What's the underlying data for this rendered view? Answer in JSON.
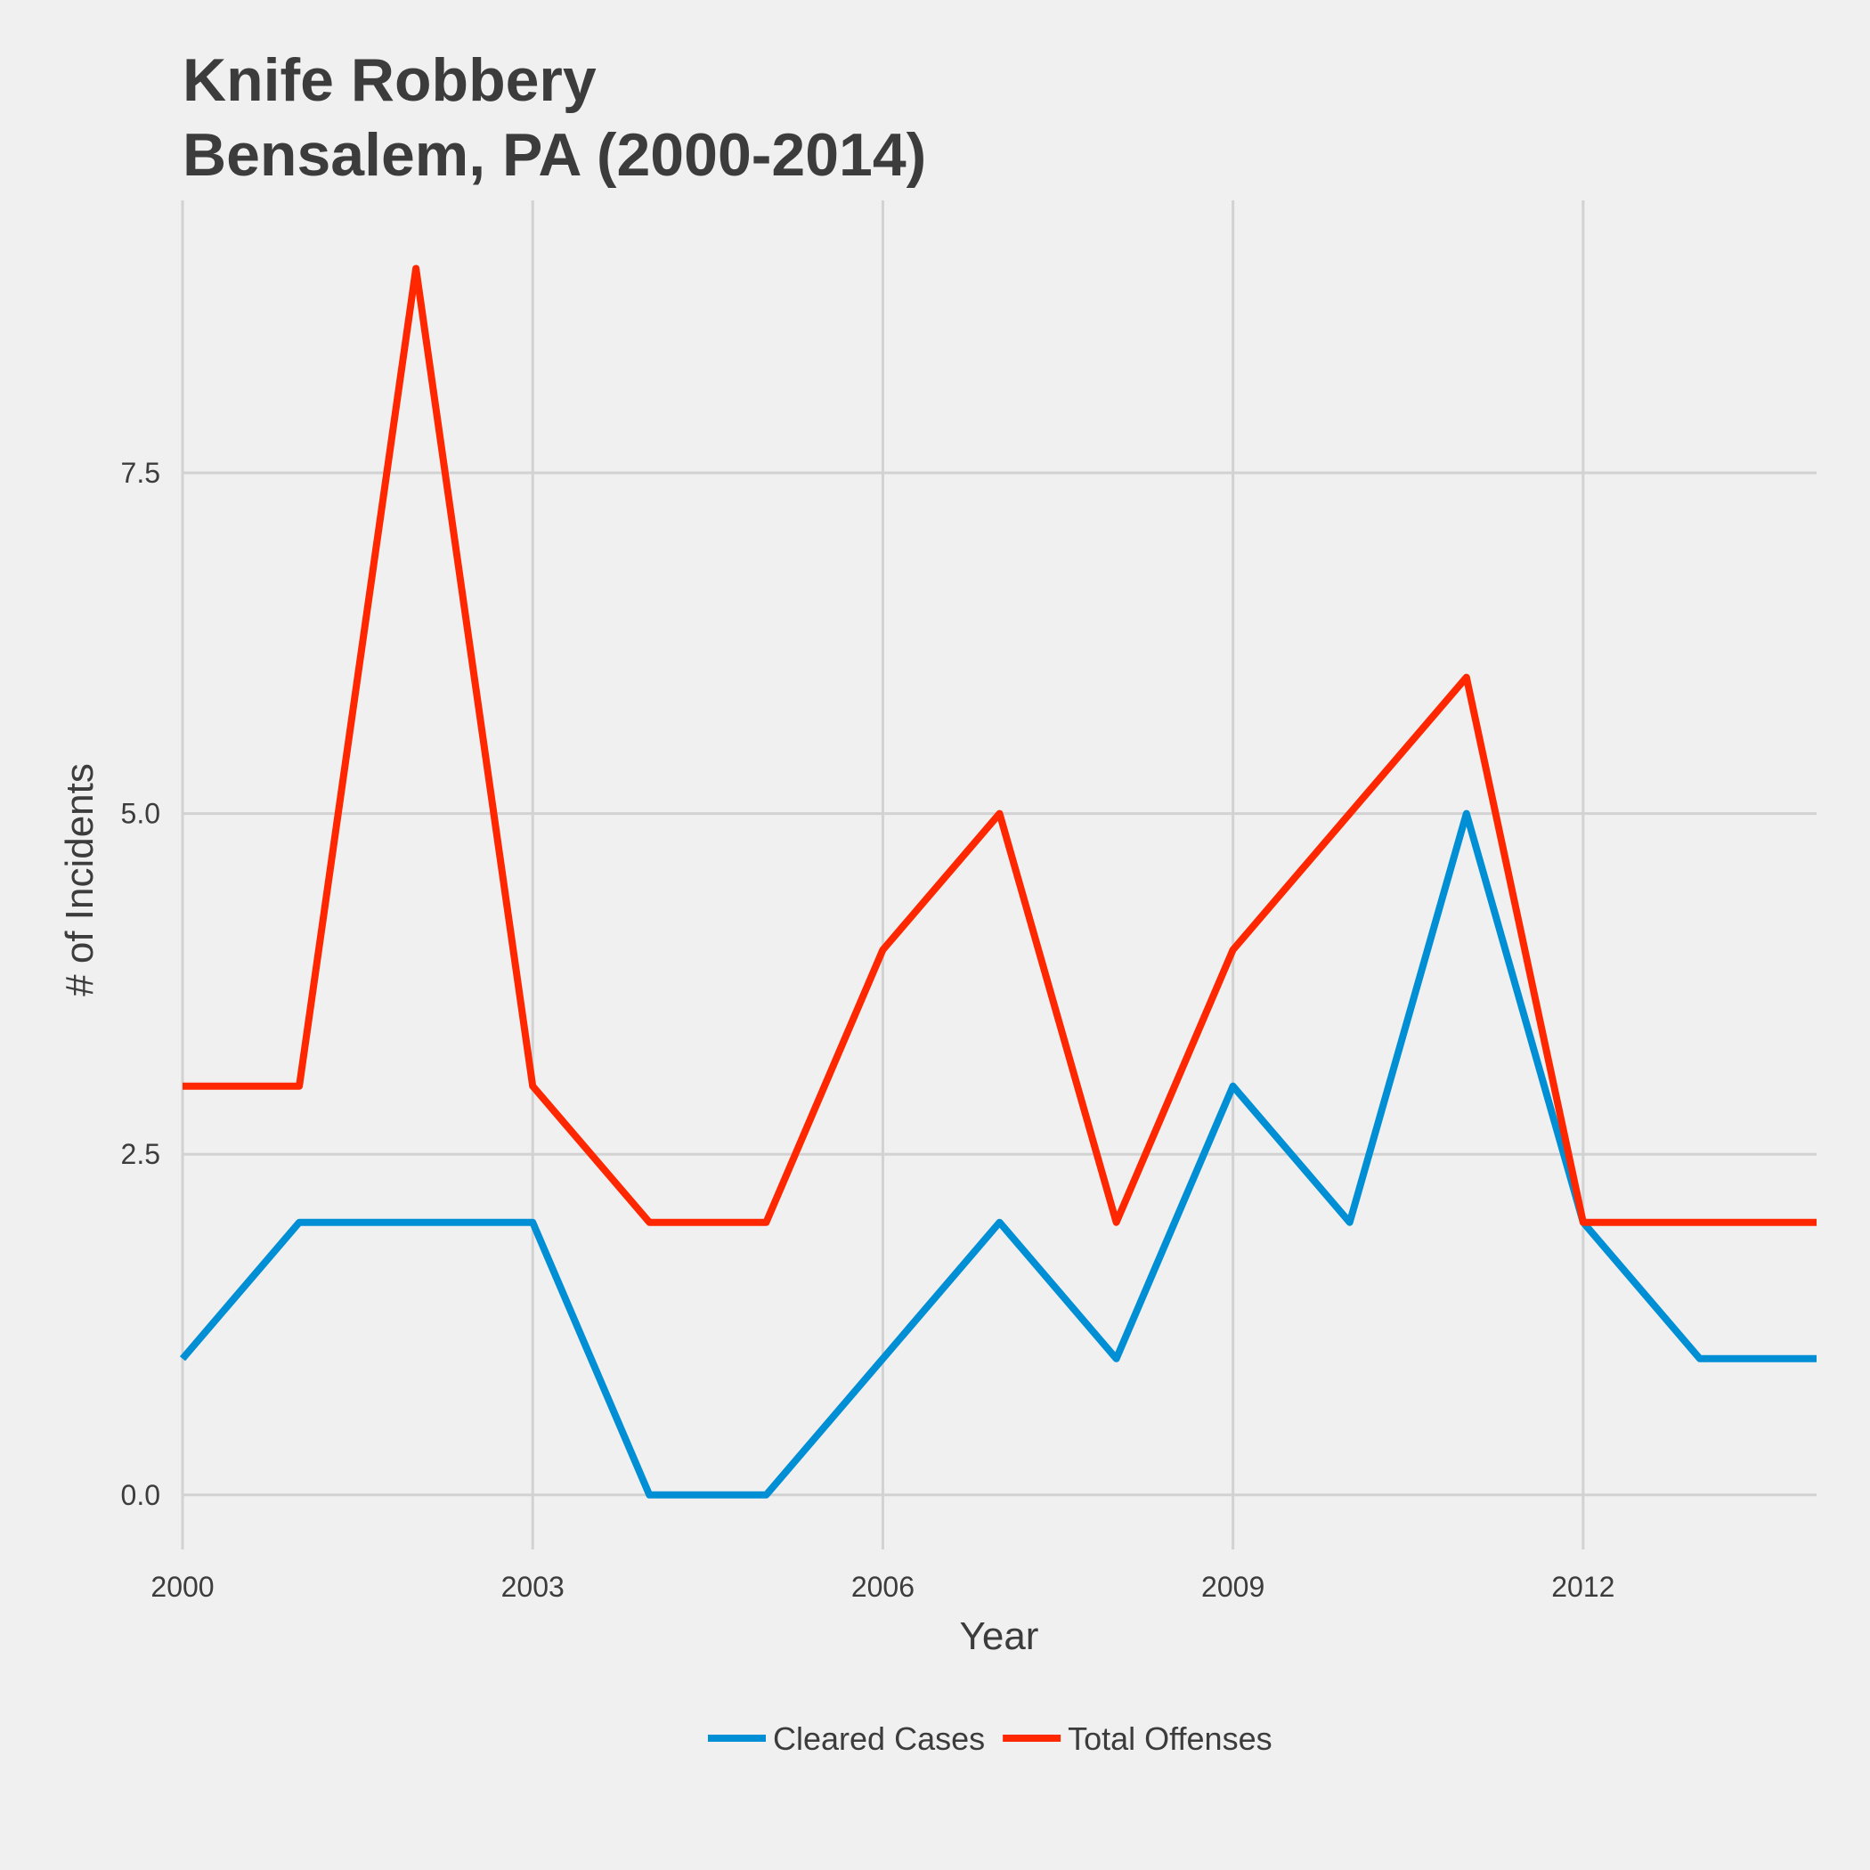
{
  "chart_data": {
    "type": "line",
    "title": [
      "Knife Robbery",
      "Bensalem, PA (2000-2014)"
    ],
    "xlabel": "Year",
    "ylabel": "# of Incidents",
    "x": [
      2000,
      2001,
      2002,
      2003,
      2004,
      2005,
      2006,
      2007,
      2008,
      2009,
      2010,
      2011,
      2012,
      2013,
      2014
    ],
    "xlim": [
      2000,
      2014
    ],
    "ylim": [
      -0.4,
      9.5
    ],
    "x_ticks": [
      2000,
      2003,
      2006,
      2009,
      2012
    ],
    "x_tick_labels": [
      "2000",
      "2003",
      "2006",
      "2009",
      "2012"
    ],
    "y_ticks": [
      0,
      2.5,
      5,
      7.5
    ],
    "y_tick_labels": [
      "0.0",
      "2.5",
      "5.0",
      "7.5"
    ],
    "grid": true,
    "legend_position": "bottom",
    "series": [
      {
        "name": "Cleared Cases",
        "color": "#008fd5",
        "values": [
          1,
          2,
          2,
          2,
          0,
          0,
          1,
          2,
          1,
          3,
          2,
          5,
          2,
          1,
          1
        ]
      },
      {
        "name": "Total Offenses",
        "color": "#ff2700",
        "values": [
          3,
          3,
          9,
          3,
          2,
          2,
          4,
          5,
          2,
          4,
          5,
          6,
          2,
          2,
          2
        ]
      }
    ]
  }
}
